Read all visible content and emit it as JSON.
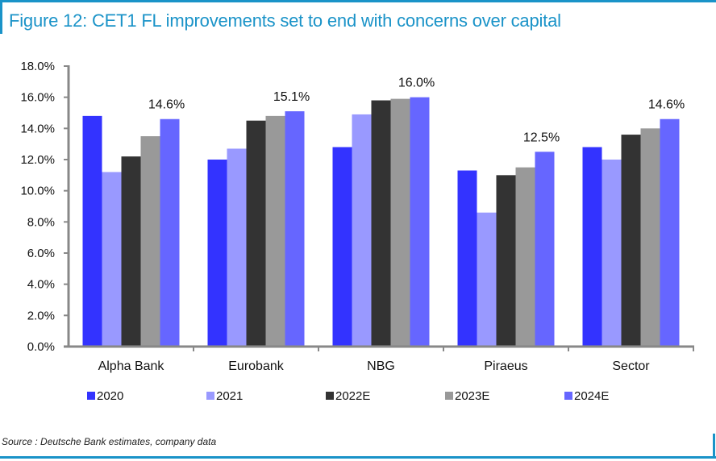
{
  "title": "Figure 12: CET1 FL improvements set to end with concerns over capital",
  "source": "Source : Deutsche Bank estimates, company data",
  "chart_data": {
    "type": "bar",
    "title": "Figure 12: CET1 FL improvements set to end with concerns over capital",
    "xlabel": "",
    "ylabel": "",
    "ylim": [
      0,
      18
    ],
    "yticks": [
      0,
      2,
      4,
      6,
      8,
      10,
      12,
      14,
      16,
      18
    ],
    "ytick_labels": [
      "0.0%",
      "2.0%",
      "4.0%",
      "6.0%",
      "8.0%",
      "10.0%",
      "12.0%",
      "14.0%",
      "16.0%",
      "18.0%"
    ],
    "grid": false,
    "legend_position": "bottom",
    "categories": [
      "Alpha Bank",
      "Eurobank",
      "NBG",
      "Piraeus",
      "Sector"
    ],
    "series": [
      {
        "name": "2020",
        "color": "#3333ff",
        "values": [
          14.8,
          12.0,
          12.8,
          11.3,
          12.8
        ]
      },
      {
        "name": "2021",
        "color": "#9999ff",
        "values": [
          11.2,
          12.7,
          14.9,
          8.6,
          12.0
        ]
      },
      {
        "name": "2022E",
        "color": "#333333",
        "values": [
          12.2,
          14.5,
          15.8,
          11.0,
          13.6
        ]
      },
      {
        "name": "2023E",
        "color": "#999999",
        "values": [
          13.5,
          14.8,
          15.9,
          11.5,
          14.0
        ]
      },
      {
        "name": "2024E",
        "color": "#6666ff",
        "values": [
          14.6,
          15.1,
          16.0,
          12.5,
          14.6
        ]
      }
    ],
    "data_labels": {
      "series": "2024E",
      "labels": [
        "14.6%",
        "15.1%",
        "16.0%",
        "12.5%",
        "14.6%"
      ]
    }
  }
}
